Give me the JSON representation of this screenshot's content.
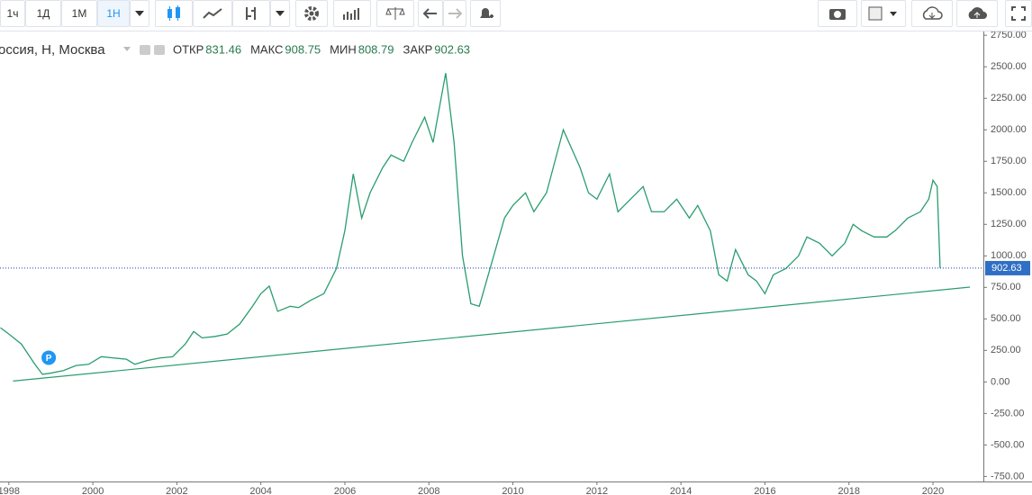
{
  "toolbar": {
    "intervals": [
      "1ч",
      "1Д",
      "1М",
      "1Н"
    ]
  },
  "chart_data": {
    "type": "line",
    "title": "оссия, Н, Москва",
    "ohlc": [
      {
        "label": "ОТКР",
        "value": 831.46
      },
      {
        "label": "МАКС",
        "value": 908.75
      },
      {
        "label": "МИН",
        "value": 808.79
      },
      {
        "label": "ЗАКР",
        "value": 902.63
      }
    ],
    "last_price": 902.63,
    "color": "#2a9d6f",
    "x": [
      1997.8,
      1998.0,
      1998.3,
      1998.6,
      1998.8,
      1999.0,
      1999.3,
      1999.6,
      1999.9,
      2000.2,
      2000.5,
      2000.8,
      2001.0,
      2001.3,
      2001.6,
      2001.9,
      2002.2,
      2002.4,
      2002.6,
      2002.9,
      2003.2,
      2003.5,
      2003.8,
      2004.0,
      2004.2,
      2004.4,
      2004.7,
      2004.9,
      2005.2,
      2005.5,
      2005.8,
      2006.0,
      2006.2,
      2006.4,
      2006.6,
      2006.9,
      2007.1,
      2007.4,
      2007.6,
      2007.9,
      2008.1,
      2008.4,
      2008.6,
      2008.8,
      2009.0,
      2009.2,
      2009.5,
      2009.8,
      2010.0,
      2010.3,
      2010.5,
      2010.8,
      2011.0,
      2011.2,
      2011.4,
      2011.6,
      2011.8,
      2012.0,
      2012.3,
      2012.5,
      2012.8,
      2013.1,
      2013.3,
      2013.6,
      2013.9,
      2014.2,
      2014.4,
      2014.7,
      2014.9,
      2015.1,
      2015.3,
      2015.6,
      2015.8,
      2016.0,
      2016.2,
      2016.5,
      2016.8,
      2017.0,
      2017.3,
      2017.6,
      2017.9,
      2018.1,
      2018.3,
      2018.6,
      2018.9,
      2019.1,
      2019.4,
      2019.7,
      2019.9,
      2020.0,
      2020.1,
      2020.17
    ],
    "values": [
      430,
      380,
      300,
      150,
      60,
      70,
      90,
      130,
      140,
      200,
      190,
      180,
      140,
      170,
      190,
      200,
      300,
      400,
      350,
      360,
      380,
      460,
      600,
      700,
      760,
      560,
      600,
      590,
      650,
      700,
      900,
      1200,
      1650,
      1300,
      1500,
      1700,
      1800,
      1750,
      1900,
      2100,
      1900,
      2450,
      1900,
      1000,
      620,
      600,
      950,
      1300,
      1400,
      1500,
      1350,
      1500,
      1750,
      2000,
      1850,
      1700,
      1500,
      1450,
      1650,
      1350,
      1450,
      1550,
      1350,
      1350,
      1450,
      1300,
      1400,
      1200,
      850,
      800,
      1050,
      850,
      800,
      700,
      850,
      900,
      1000,
      1150,
      1100,
      1000,
      1100,
      1250,
      1200,
      1150,
      1150,
      1200,
      1300,
      1350,
      1450,
      1600,
      1550,
      902.63
    ],
    "trendline": {
      "x": [
        1998.1,
        2020.88
      ],
      "values": [
        7,
        752
      ],
      "color": "#2a9d6f"
    },
    "annotations": [
      {
        "text": "P",
        "x": 1998.95,
        "y": 192
      }
    ],
    "xlim": [
      1997.79,
      2021.2
    ],
    "xticks": [
      1998,
      2000,
      2002,
      2004,
      2006,
      2008,
      2010,
      2012,
      2014,
      2016,
      2018,
      2020
    ],
    "ylim": [
      -790,
      2780
    ],
    "yticks": [
      {
        "value": -750,
        "label": "-750.00"
      },
      {
        "value": -500,
        "label": "-500.00"
      },
      {
        "value": -250,
        "label": "-250.00"
      },
      {
        "value": 0,
        "label": "0.00"
      },
      {
        "value": 250,
        "label": "250.00"
      },
      {
        "value": 500,
        "label": "500.00"
      },
      {
        "value": 750,
        "label": "750.00"
      },
      {
        "value": 1000,
        "label": "1000.00"
      },
      {
        "value": 1250,
        "label": "1250.00"
      },
      {
        "value": 1500,
        "label": "1500.00"
      },
      {
        "value": 1750,
        "label": "1750.00"
      },
      {
        "value": 2000,
        "label": "2000.00"
      },
      {
        "value": 2250,
        "label": "2250.00"
      },
      {
        "value": 2500,
        "label": "2500.00"
      },
      {
        "value": 2750,
        "label": "2750.00"
      }
    ],
    "grid": false
  }
}
